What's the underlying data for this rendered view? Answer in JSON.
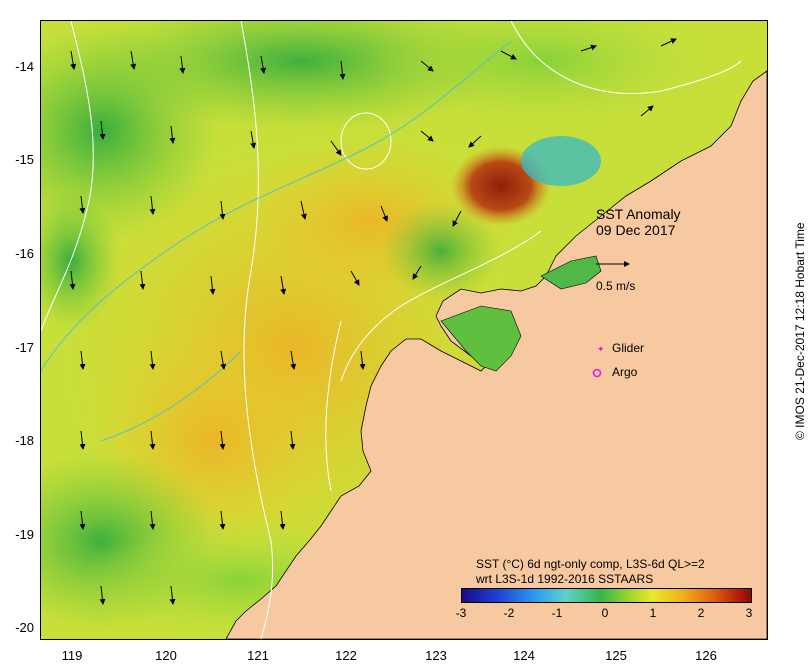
{
  "map": {
    "title_line1": "SST Anomaly",
    "title_line2": "09 Dec 2017",
    "scale_label": "0.5 m/s",
    "legend": {
      "glider": "Glider",
      "argo": "Argo"
    },
    "credit": "© IMOS 21-Dec-2017 12:18 Hobart Time"
  },
  "axes": {
    "y_labels": [
      "-14",
      "-15",
      "-16",
      "-17",
      "-18",
      "-19",
      "-20"
    ],
    "x_labels": [
      "119",
      "120",
      "121",
      "122",
      "123",
      "124",
      "125",
      "126"
    ]
  },
  "colorbar": {
    "title_line1": "SST (°C) 6d ngt-only comp, L3S-6d QL>=2",
    "title_line2": "wrt L3S-1d 1992-2016 SSTAARS",
    "labels": [
      "-3",
      "-2",
      "-1",
      "0",
      "1",
      "2",
      "3"
    ]
  },
  "colors": {
    "land": "#f6c9a0",
    "ocean_base": "#b7dc3c",
    "anomaly_hot": "#a3290f",
    "glider_marker": "#e61ae6",
    "argo_marker": "#e61ae6"
  }
}
